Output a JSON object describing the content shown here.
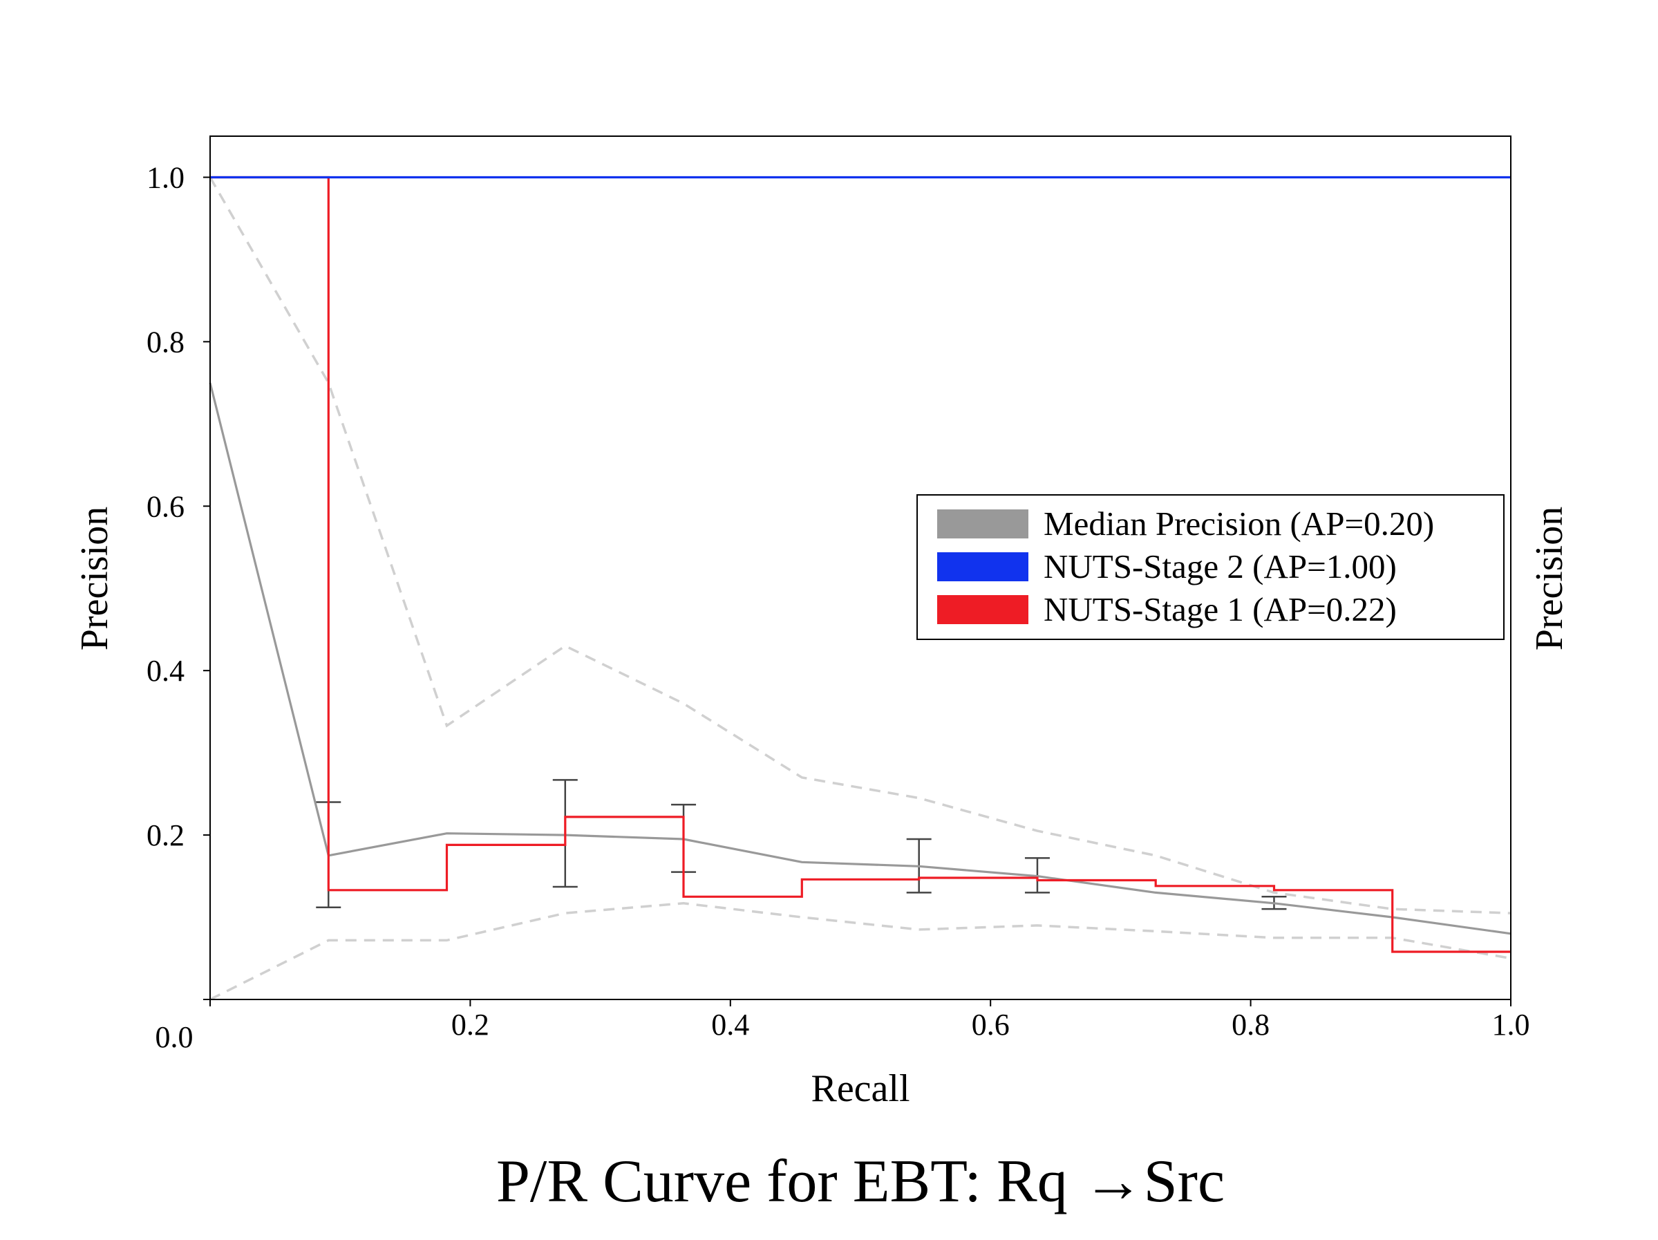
{
  "chart_data": {
    "type": "line",
    "title": "P/R Curve for EBT: Rq →Src",
    "xlabel": "Recall",
    "ylabel": "Precision",
    "ylabel_right": "Precision",
    "xlim": [
      0,
      1
    ],
    "ylim": [
      0,
      1.05
    ],
    "x_ticks": [
      {
        "value": 0.0,
        "label": "0.0"
      },
      {
        "value": 0.2,
        "label": "0.2"
      },
      {
        "value": 0.4,
        "label": "0.4"
      },
      {
        "value": 0.6,
        "label": "0.6"
      },
      {
        "value": 0.8,
        "label": "0.8"
      },
      {
        "value": 1.0,
        "label": "1.0"
      }
    ],
    "y_ticks": [
      {
        "value": 0.2,
        "label": "0.2"
      },
      {
        "value": 0.4,
        "label": "0.4"
      },
      {
        "value": 0.6,
        "label": "0.6"
      },
      {
        "value": 0.8,
        "label": "0.8"
      },
      {
        "value": 1.0,
        "label": "1.0"
      }
    ],
    "grid": false,
    "legend_position": "center-right",
    "series": [
      {
        "name": "Median Precision (AP=0.20)",
        "color": "#999999",
        "style": "solid",
        "x": [
          0.0,
          0.091,
          0.182,
          0.273,
          0.364,
          0.455,
          0.545,
          0.636,
          0.727,
          0.818,
          0.909,
          1.0
        ],
        "y": [
          0.75,
          0.175,
          0.202,
          0.2,
          0.195,
          0.167,
          0.162,
          0.15,
          0.13,
          0.117,
          0.1,
          0.08
        ]
      },
      {
        "name": "NUTS-Stage 2 (AP=1.00)",
        "color": "#1133ee",
        "style": "step",
        "x": [
          0.0,
          1.0
        ],
        "y": [
          1.0,
          1.0
        ]
      },
      {
        "name": "NUTS-Stage 1 (AP=0.22)",
        "color": "#ee1c25",
        "style": "step",
        "x": [
          0.0,
          0.091,
          0.091,
          0.182,
          0.182,
          0.273,
          0.273,
          0.364,
          0.364,
          0.455,
          0.455,
          0.545,
          0.545,
          0.636,
          0.636,
          0.727,
          0.727,
          0.818,
          0.818,
          0.909,
          0.909,
          1.0
        ],
        "y": [
          1.0,
          1.0,
          0.133,
          0.133,
          0.188,
          0.188,
          0.222,
          0.222,
          0.125,
          0.125,
          0.146,
          0.146,
          0.148,
          0.148,
          0.145,
          0.145,
          0.138,
          0.138,
          0.133,
          0.133,
          0.058,
          0.058
        ]
      }
    ],
    "percentile_bands": [
      {
        "color": "#d0d0d0",
        "style": "dashed",
        "x": [
          0.0,
          0.091,
          0.182,
          0.273,
          0.364,
          0.455,
          0.545,
          0.636,
          0.727,
          0.818,
          0.909,
          1.0
        ],
        "y": [
          1.0,
          0.75,
          0.333,
          0.43,
          0.36,
          0.27,
          0.245,
          0.205,
          0.175,
          0.13,
          0.11,
          0.105
        ]
      },
      {
        "color": "#d0d0d0",
        "style": "dashed",
        "x": [
          0.0,
          0.091,
          0.182,
          0.273,
          0.364,
          0.455,
          0.545,
          0.636,
          0.727,
          0.818,
          0.909,
          1.0
        ],
        "y": [
          0.0,
          0.072,
          0.072,
          0.105,
          0.117,
          0.1,
          0.085,
          0.09,
          0.083,
          0.075,
          0.075,
          0.05
        ]
      }
    ],
    "error_bars": [
      {
        "x": 0.091,
        "low": 0.112,
        "high": 0.24
      },
      {
        "x": 0.273,
        "low": 0.137,
        "high": 0.267
      },
      {
        "x": 0.364,
        "low": 0.155,
        "high": 0.237
      },
      {
        "x": 0.545,
        "low": 0.13,
        "high": 0.195
      },
      {
        "x": 0.636,
        "low": 0.13,
        "high": 0.172
      },
      {
        "x": 0.818,
        "low": 0.11,
        "high": 0.125
      }
    ]
  }
}
